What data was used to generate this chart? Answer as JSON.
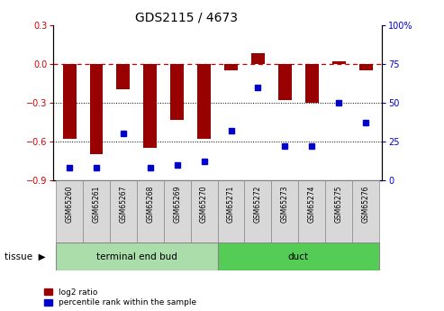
{
  "title": "GDS2115 / 4673",
  "samples": [
    "GSM65260",
    "GSM65261",
    "GSM65267",
    "GSM65268",
    "GSM65269",
    "GSM65270",
    "GSM65271",
    "GSM65272",
    "GSM65273",
    "GSM65274",
    "GSM65275",
    "GSM65276"
  ],
  "log2_ratio": [
    -0.58,
    -0.7,
    -0.2,
    -0.65,
    -0.43,
    -0.58,
    -0.05,
    0.08,
    -0.28,
    -0.3,
    0.02,
    -0.05
  ],
  "percentile_rank": [
    8,
    8,
    30,
    8,
    10,
    12,
    32,
    60,
    22,
    22,
    50,
    37
  ],
  "groups": [
    {
      "label": "terminal end bud",
      "start": 0,
      "end": 6,
      "color": "#AADDAA"
    },
    {
      "label": "duct",
      "start": 6,
      "end": 12,
      "color": "#55CC55"
    }
  ],
  "ylim_left": [
    -0.9,
    0.3
  ],
  "ylim_right": [
    0,
    100
  ],
  "yticks_left": [
    -0.9,
    -0.6,
    -0.3,
    0.0,
    0.3
  ],
  "yticks_right": [
    0,
    25,
    50,
    75,
    100
  ],
  "bar_color": "#990000",
  "dot_color": "#0000CC",
  "hline_color": "#CC0000",
  "grid_color": "#000000",
  "legend_log2": "log2 ratio",
  "legend_pct": "percentile rank within the sample"
}
